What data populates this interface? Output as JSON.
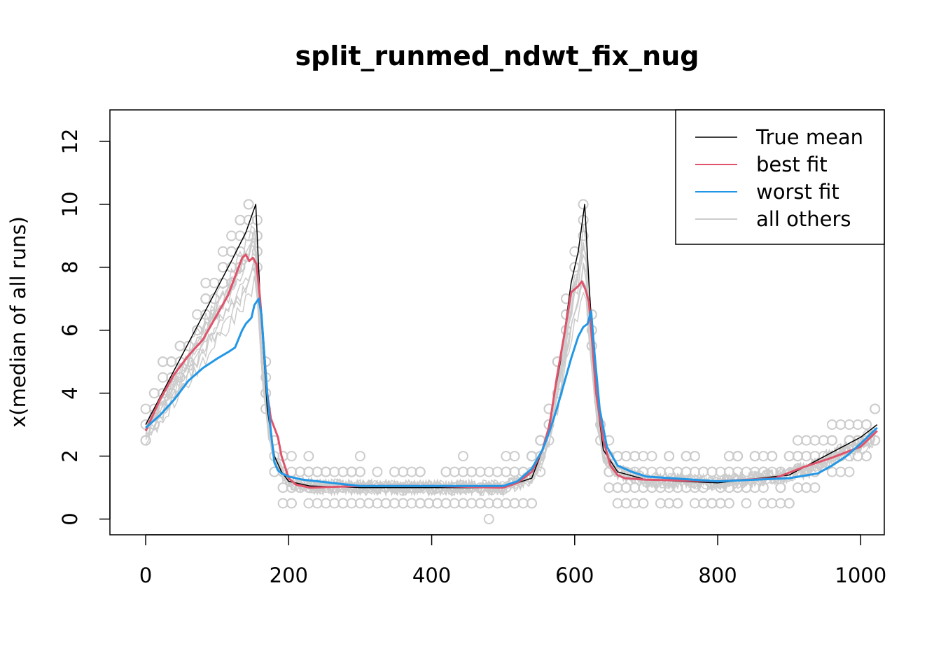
{
  "chart_data": {
    "type": "line",
    "title": "split_runmed_ndwt_fix_nug",
    "xlabel": "",
    "ylabel": "x(median of all runs)",
    "xlim": [
      -50,
      1033
    ],
    "ylim": [
      -0.5,
      13
    ],
    "xticks": [
      0,
      200,
      400,
      600,
      800,
      1000
    ],
    "yticks": [
      0,
      2,
      4,
      6,
      8,
      10,
      12
    ],
    "grid": false,
    "legend_position": "top-right",
    "series": [
      {
        "name": "True mean",
        "color": "#000000",
        "x": [
          0,
          30,
          60,
          90,
          120,
          140,
          154,
          160,
          170,
          180,
          190,
          200,
          230,
          300,
          400,
          500,
          540,
          560,
          580,
          595,
          605,
          614,
          620,
          630,
          640,
          660,
          700,
          800,
          900,
          950,
          1000,
          1023
        ],
        "y": [
          3,
          4.3,
          5.6,
          6.9,
          8.2,
          9.1,
          10,
          7,
          3.5,
          2,
          1.5,
          1.2,
          1.05,
          1,
          1,
          1,
          1.3,
          2.5,
          5,
          7.5,
          8.5,
          10,
          7.5,
          4,
          2.2,
          1.5,
          1.25,
          1.15,
          1.4,
          2,
          2.6,
          3
        ]
      },
      {
        "name": "best fit",
        "color": "#DF536B",
        "x": [
          0,
          20,
          40,
          60,
          80,
          100,
          115,
          125,
          135,
          140,
          145,
          150,
          155,
          160,
          165,
          170,
          175,
          180,
          185,
          190,
          200,
          210,
          230,
          300,
          400,
          500,
          520,
          540,
          555,
          565,
          575,
          585,
          595,
          605,
          610,
          615,
          620,
          625,
          630,
          640,
          650,
          660,
          670,
          700,
          800,
          880,
          920,
          960,
          1000,
          1023
        ],
        "y": [
          2.8,
          3.8,
          4.6,
          5.2,
          5.7,
          6.5,
          7.1,
          7.7,
          8.3,
          8.4,
          8.2,
          8.3,
          8.1,
          7,
          5.5,
          4,
          3.2,
          2.9,
          2.6,
          2.0,
          1.3,
          1.1,
          1.0,
          1.05,
          1.05,
          1.0,
          1.15,
          1.5,
          2.2,
          3.0,
          4.5,
          5.8,
          7.2,
          7.4,
          7.55,
          7.3,
          6.9,
          5.5,
          4.0,
          2.5,
          1.7,
          1.4,
          1.3,
          1.25,
          1.2,
          1.3,
          1.65,
          1.95,
          2.3,
          2.8
        ]
      },
      {
        "name": "worst fit",
        "color": "#2297E6",
        "x": [
          0,
          20,
          40,
          60,
          80,
          100,
          115,
          125,
          135,
          140,
          148,
          152,
          158,
          162,
          165,
          170,
          175,
          180,
          185,
          190,
          200,
          220,
          300,
          400,
          500,
          520,
          540,
          555,
          565,
          575,
          585,
          595,
          605,
          612,
          618,
          623,
          628,
          635,
          645,
          660,
          680,
          700,
          800,
          900,
          940,
          960,
          980,
          1000,
          1023
        ],
        "y": [
          2.9,
          3.3,
          3.8,
          4.4,
          4.8,
          5.1,
          5.3,
          5.45,
          6.0,
          6.2,
          6.4,
          6.8,
          7.0,
          6.5,
          5.5,
          4.0,
          2.8,
          1.8,
          1.55,
          1.45,
          1.35,
          1.25,
          1.05,
          1.05,
          1.05,
          1.2,
          1.6,
          2.2,
          2.8,
          3.5,
          4.3,
          5.1,
          5.8,
          6.1,
          6.2,
          6.6,
          5.2,
          3.5,
          2.3,
          1.7,
          1.5,
          1.35,
          1.2,
          1.3,
          1.45,
          1.7,
          2.0,
          2.4,
          2.9
        ]
      }
    ],
    "others_label": "all others",
    "others_color": "#CCCCCC"
  }
}
